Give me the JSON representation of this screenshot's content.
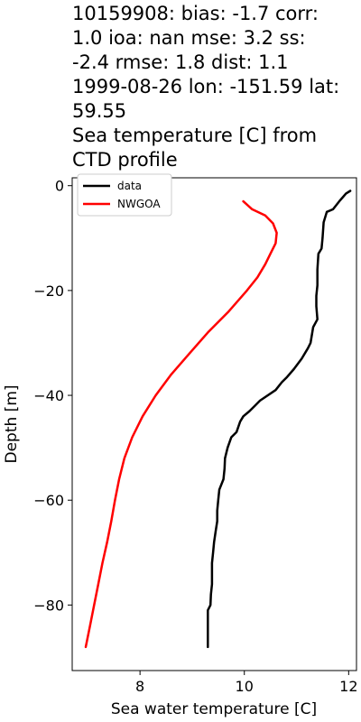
{
  "chart_data": {
    "type": "line",
    "title_lines": [
      "10159908: bias: -1.7  corr:",
      "1.0  ioa: nan  mse: 3.2  ss:",
      "-2.4  rmse: 1.8  dist: 1.1",
      "1999-08-26 lon: -151.59 lat:",
      "59.55",
      "Sea temperature [C] from",
      "CTD profile"
    ],
    "xlabel": "Sea water temperature [C]",
    "ylabel": "Depth [m]",
    "xlim": [
      6.7,
      12.15
    ],
    "ylim": [
      -92.5,
      1.5
    ],
    "xticks": [
      8,
      10,
      12
    ],
    "yticks": [
      0,
      -20,
      -40,
      -60,
      -80
    ],
    "xtick_labels": [
      "8",
      "10",
      "12"
    ],
    "ytick_labels": [
      "0",
      "−20",
      "−40",
      "−60",
      "−80"
    ],
    "legend": {
      "position": "top-left",
      "entries": [
        "data",
        "NWGOA"
      ]
    },
    "series": [
      {
        "name": "data",
        "color": "#000000",
        "points": [
          [
            12.03,
            -1
          ],
          [
            11.95,
            -1.5
          ],
          [
            11.82,
            -3
          ],
          [
            11.7,
            -4.5
          ],
          [
            11.58,
            -5
          ],
          [
            11.52,
            -7
          ],
          [
            11.5,
            -10
          ],
          [
            11.48,
            -12
          ],
          [
            11.42,
            -13
          ],
          [
            11.4,
            -16
          ],
          [
            11.4,
            -19
          ],
          [
            11.38,
            -21
          ],
          [
            11.38,
            -23
          ],
          [
            11.4,
            -25.5
          ],
          [
            11.32,
            -27
          ],
          [
            11.27,
            -30
          ],
          [
            11.22,
            -31
          ],
          [
            11.1,
            -33
          ],
          [
            10.95,
            -35
          ],
          [
            10.82,
            -36.5
          ],
          [
            10.72,
            -37.5
          ],
          [
            10.6,
            -39
          ],
          [
            10.3,
            -41
          ],
          [
            10.2,
            -42
          ],
          [
            10.1,
            -43
          ],
          [
            9.98,
            -44
          ],
          [
            9.92,
            -45
          ],
          [
            9.85,
            -47
          ],
          [
            9.75,
            -48
          ],
          [
            9.68,
            -50
          ],
          [
            9.63,
            -52
          ],
          [
            9.62,
            -54
          ],
          [
            9.6,
            -56
          ],
          [
            9.52,
            -58
          ],
          [
            9.5,
            -60
          ],
          [
            9.48,
            -62
          ],
          [
            9.48,
            -64
          ],
          [
            9.45,
            -66
          ],
          [
            9.42,
            -68
          ],
          [
            9.4,
            -70
          ],
          [
            9.38,
            -72
          ],
          [
            9.38,
            -74
          ],
          [
            9.38,
            -76
          ],
          [
            9.36,
            -78
          ],
          [
            9.35,
            -80
          ],
          [
            9.3,
            -81
          ],
          [
            9.3,
            -82
          ],
          [
            9.3,
            -84
          ],
          [
            9.3,
            -86
          ],
          [
            9.3,
            -88
          ]
        ]
      },
      {
        "name": "NWGOA",
        "color": "#ff0000",
        "points": [
          [
            9.98,
            -3
          ],
          [
            10.15,
            -4.5
          ],
          [
            10.4,
            -5.7
          ],
          [
            10.55,
            -7.2
          ],
          [
            10.62,
            -9
          ],
          [
            10.6,
            -11
          ],
          [
            10.5,
            -13
          ],
          [
            10.4,
            -15
          ],
          [
            10.25,
            -17.5
          ],
          [
            10.05,
            -20
          ],
          [
            9.7,
            -24
          ],
          [
            9.3,
            -28
          ],
          [
            8.95,
            -32
          ],
          [
            8.6,
            -36
          ],
          [
            8.3,
            -40
          ],
          [
            8.05,
            -44
          ],
          [
            7.85,
            -48
          ],
          [
            7.7,
            -52
          ],
          [
            7.6,
            -56
          ],
          [
            7.52,
            -60
          ],
          [
            7.45,
            -64
          ],
          [
            7.37,
            -68
          ],
          [
            7.28,
            -72
          ],
          [
            7.2,
            -76
          ],
          [
            7.12,
            -80
          ],
          [
            7.04,
            -84
          ],
          [
            6.96,
            -88
          ]
        ]
      }
    ]
  }
}
